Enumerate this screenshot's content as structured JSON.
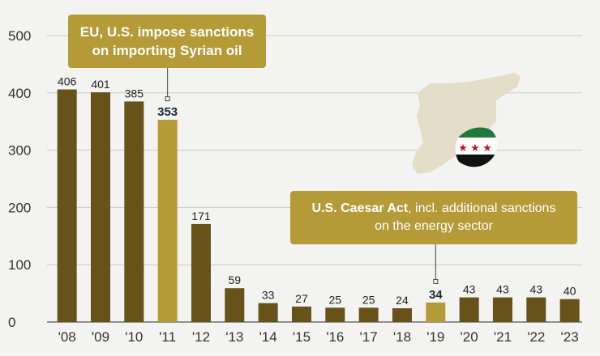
{
  "chart_data": {
    "type": "bar",
    "categories": [
      "'08",
      "'09",
      "'10",
      "'11",
      "'12",
      "'13",
      "'14",
      "'15",
      "'16",
      "'17",
      "'18",
      "'19",
      "'20",
      "'21",
      "'22",
      "'23"
    ],
    "values": [
      406,
      401,
      385,
      353,
      171,
      59,
      33,
      27,
      25,
      25,
      24,
      34,
      43,
      43,
      43,
      40
    ],
    "value_labels": [
      "406",
      "401",
      "385",
      "353",
      "171",
      "59",
      "33",
      "27",
      "25",
      "25",
      "24",
      "34",
      "43",
      "43",
      "43",
      "40"
    ],
    "highlighted_categories": [
      "'11",
      "'19"
    ],
    "yticks": [
      "0",
      "100",
      "200",
      "300",
      "400",
      "500"
    ],
    "ylim": [
      0,
      500
    ],
    "grid": true,
    "colors": {
      "bar": "#67521a",
      "highlight": "#b59a38",
      "grid": "#c9c9c9",
      "background": "#f3f3f1"
    },
    "annotations": [
      {
        "category": "'11",
        "line1": "EU, U.S. impose sanctions",
        "line2": "on importing Syrian oil"
      },
      {
        "category": "'19",
        "bold": "U.S. Caesar Act",
        "rest": ", incl. additional sanctions",
        "line2": "on the energy sector"
      }
    ],
    "decorations": {
      "map": "syria-map-icon",
      "flag": "syrian-independence-flag-icon"
    }
  }
}
